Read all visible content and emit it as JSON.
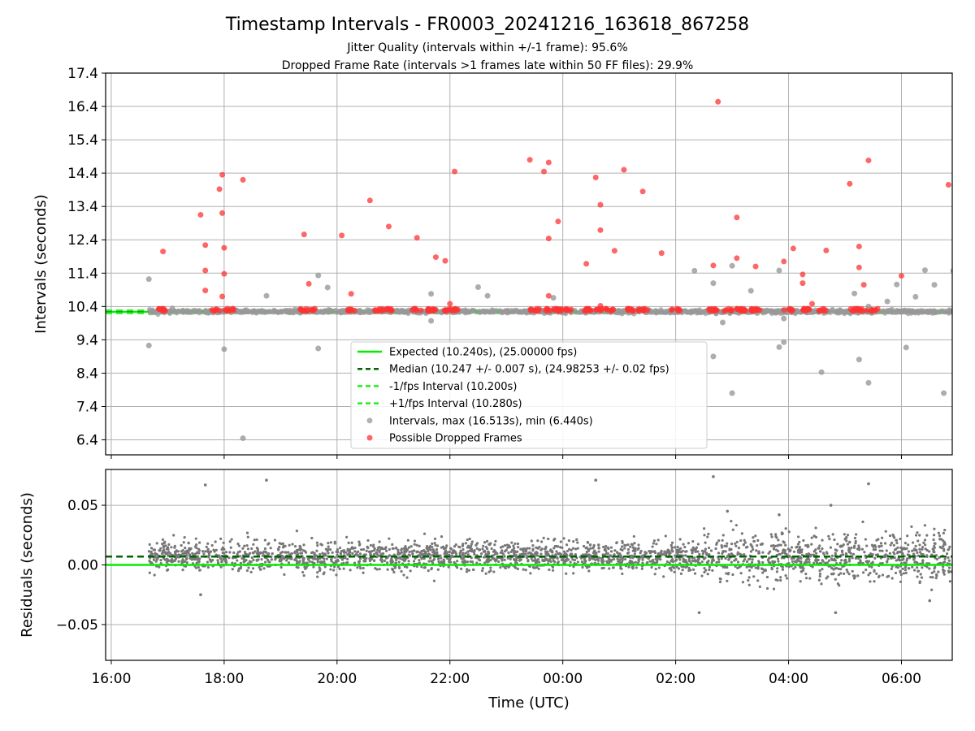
{
  "figure": {
    "title": "Timestamp Intervals - FR0003_20241216_163618_867258",
    "subtitle_1": "Jitter Quality (intervals within +/-1 frame): 95.6%",
    "subtitle_2": "Dropped Frame Rate (intervals >1 frames late within 50 FF files): 29.9%"
  },
  "colors": {
    "expected": "#00ee00",
    "median": "#006400",
    "bounds": "#22ee22",
    "intervals": "#999999",
    "dropped": "#ff3333",
    "residuals": "#777777",
    "grid": "#b0b0b0"
  },
  "chart_data": [
    {
      "type": "scatter",
      "panel": "top",
      "xlabel": "",
      "ylabel": "Intervals (seconds)",
      "x_range": [
        "2024-12-16 15:54",
        "2024-12-17 06:54"
      ],
      "ylim": [
        5.95,
        17.4
      ],
      "y_ticks": [
        6.4,
        7.4,
        8.4,
        9.4,
        10.4,
        11.4,
        12.4,
        13.4,
        14.4,
        15.4,
        16.4,
        17.4
      ],
      "x_ticks": [
        "16:00",
        "18:00",
        "20:00",
        "22:00",
        "00:00",
        "02:00",
        "04:00",
        "06:00"
      ],
      "grid": true,
      "legend_position": "lower-center",
      "data_start": "2024-12-16 16:40",
      "data_end": "2024-12-17 06:54",
      "lines": [
        {
          "name": "Expected (10.240s), (25.00000 fps)",
          "y": 10.24,
          "style": "solid"
        },
        {
          "name": "Median (10.247 +/- 0.007 s), (24.98253 +/- 0.02 fps)",
          "y": 10.247,
          "style": "dashed"
        },
        {
          "name": "-1/fps Interval (10.200s)",
          "y": 10.2,
          "style": "dashed"
        },
        {
          "name": "+1/fps Interval (10.280s)",
          "y": 10.28,
          "style": "dashed"
        }
      ],
      "series": [
        {
          "name": "Intervals, max (16.513s), min (6.440s)",
          "points": [
            [
              "16:40",
              11.22
            ],
            [
              "16:40",
              9.23
            ],
            [
              "17:05",
              10.34
            ],
            [
              "18:00",
              9.12
            ],
            [
              "18:20",
              6.45
            ],
            [
              "18:45",
              10.72
            ],
            [
              "19:40",
              11.33
            ],
            [
              "19:40",
              9.14
            ],
            [
              "19:50",
              10.97
            ],
            [
              "21:40",
              10.78
            ],
            [
              "21:40",
              9.97
            ],
            [
              "22:30",
              10.98
            ],
            [
              "22:40",
              10.72
            ],
            [
              "23:50",
              10.66
            ],
            [
              "02:20",
              11.47
            ],
            [
              "02:40",
              8.9
            ],
            [
              "02:50",
              9.92
            ],
            [
              "02:40",
              11.1
            ],
            [
              "03:00",
              11.62
            ],
            [
              "03:00",
              7.8
            ],
            [
              "03:20",
              10.87
            ],
            [
              "03:50",
              11.48
            ],
            [
              "03:50",
              9.18
            ],
            [
              "03:55",
              9.33
            ],
            [
              "03:55",
              10.04
            ],
            [
              "04:35",
              8.43
            ],
            [
              "05:10",
              10.79
            ],
            [
              "05:15",
              8.81
            ],
            [
              "05:25",
              10.4
            ],
            [
              "05:25",
              8.11
            ],
            [
              "05:45",
              10.55
            ],
            [
              "05:55",
              11.06
            ],
            [
              "06:05",
              9.17
            ],
            [
              "06:15",
              10.69
            ],
            [
              "06:25",
              11.49
            ],
            [
              "06:45",
              7.8
            ],
            [
              "06:55",
              11.47
            ],
            [
              "06:35",
              11.05
            ]
          ]
        },
        {
          "name": "Possible Dropped Frames",
          "points": [
            [
              "16:55",
              12.05
            ],
            [
              "17:35",
              13.15
            ],
            [
              "17:40",
              12.24
            ],
            [
              "17:40",
              11.48
            ],
            [
              "17:40",
              10.88
            ],
            [
              "17:55",
              13.92
            ],
            [
              "17:58",
              14.35
            ],
            [
              "17:58",
              13.2
            ],
            [
              "18:00",
              12.16
            ],
            [
              "18:00",
              11.38
            ],
            [
              "17:58",
              10.7
            ],
            [
              "18:20",
              14.2
            ],
            [
              "19:25",
              12.56
            ],
            [
              "19:30",
              11.08
            ],
            [
              "20:05",
              12.53
            ],
            [
              "20:15",
              10.78
            ],
            [
              "20:35",
              13.58
            ],
            [
              "20:55",
              12.8
            ],
            [
              "21:25",
              12.46
            ],
            [
              "21:45",
              11.88
            ],
            [
              "21:55",
              11.77
            ],
            [
              "22:05",
              14.45
            ],
            [
              "23:25",
              14.8
            ],
            [
              "23:40",
              14.45
            ],
            [
              "23:45",
              14.72
            ],
            [
              "23:45",
              12.44
            ],
            [
              "23:45",
              10.72
            ],
            [
              "23:55",
              12.95
            ],
            [
              "00:25",
              11.68
            ],
            [
              "00:35",
              14.27
            ],
            [
              "00:40",
              13.45
            ],
            [
              "00:40",
              12.69
            ],
            [
              "00:55",
              12.07
            ],
            [
              "01:05",
              14.5
            ],
            [
              "01:25",
              13.85
            ],
            [
              "01:45",
              12.0
            ],
            [
              "02:45",
              16.54
            ],
            [
              "02:40",
              11.63
            ],
            [
              "03:05",
              13.07
            ],
            [
              "03:05",
              11.85
            ],
            [
              "03:25",
              11.6
            ],
            [
              "03:55",
              11.75
            ],
            [
              "04:05",
              12.14
            ],
            [
              "04:15",
              11.36
            ],
            [
              "04:15",
              11.1
            ],
            [
              "04:25",
              10.48
            ],
            [
              "04:40",
              12.08
            ],
            [
              "05:05",
              14.08
            ],
            [
              "05:15",
              12.2
            ],
            [
              "05:15",
              11.57
            ],
            [
              "05:20",
              11.05
            ],
            [
              "05:25",
              14.78
            ],
            [
              "06:00",
              11.32
            ],
            [
              "06:50",
              14.05
            ],
            [
              "00:40",
              10.42
            ],
            [
              "22:00",
              10.48
            ]
          ]
        }
      ],
      "dense_band": {
        "series": "Intervals, max (16.513s), min (6.440s)",
        "center": 10.247,
        "spread": 0.05
      },
      "dropped_band": {
        "series": "Possible Dropped Frames",
        "center": 10.3,
        "spread": 0.07
      }
    },
    {
      "type": "scatter",
      "panel": "bottom",
      "xlabel": "Time (UTC)",
      "ylabel": "Residuals (seconds)",
      "ylim": [
        -0.08,
        0.08
      ],
      "y_ticks": [
        -0.05,
        0.0,
        0.05
      ],
      "y_tick_labels": [
        "−0.05",
        "0.00",
        "0.05"
      ],
      "x_ticks": [
        "16:00",
        "18:00",
        "20:00",
        "22:00",
        "00:00",
        "02:00",
        "04:00",
        "06:00"
      ],
      "grid": true,
      "lines": [
        {
          "name": "Zero",
          "y": 0.0,
          "style": "solid"
        },
        {
          "name": "Median offset",
          "y": 0.007,
          "style": "dashed"
        }
      ],
      "residual_band": {
        "center": 0.007,
        "spread_early": 0.012,
        "spread_late": 0.02
      },
      "outliers": [
        [
          "17:40",
          0.067
        ],
        [
          "18:45",
          0.071
        ],
        [
          "00:35",
          0.071
        ],
        [
          "02:40",
          0.074
        ],
        [
          "05:25",
          0.068
        ],
        [
          "04:45",
          0.05
        ],
        [
          "02:55",
          0.045
        ],
        [
          "03:50",
          0.042
        ],
        [
          "04:50",
          -0.04
        ],
        [
          "02:25",
          -0.04
        ],
        [
          "06:30",
          -0.03
        ],
        [
          "17:35",
          -0.025
        ]
      ]
    }
  ]
}
